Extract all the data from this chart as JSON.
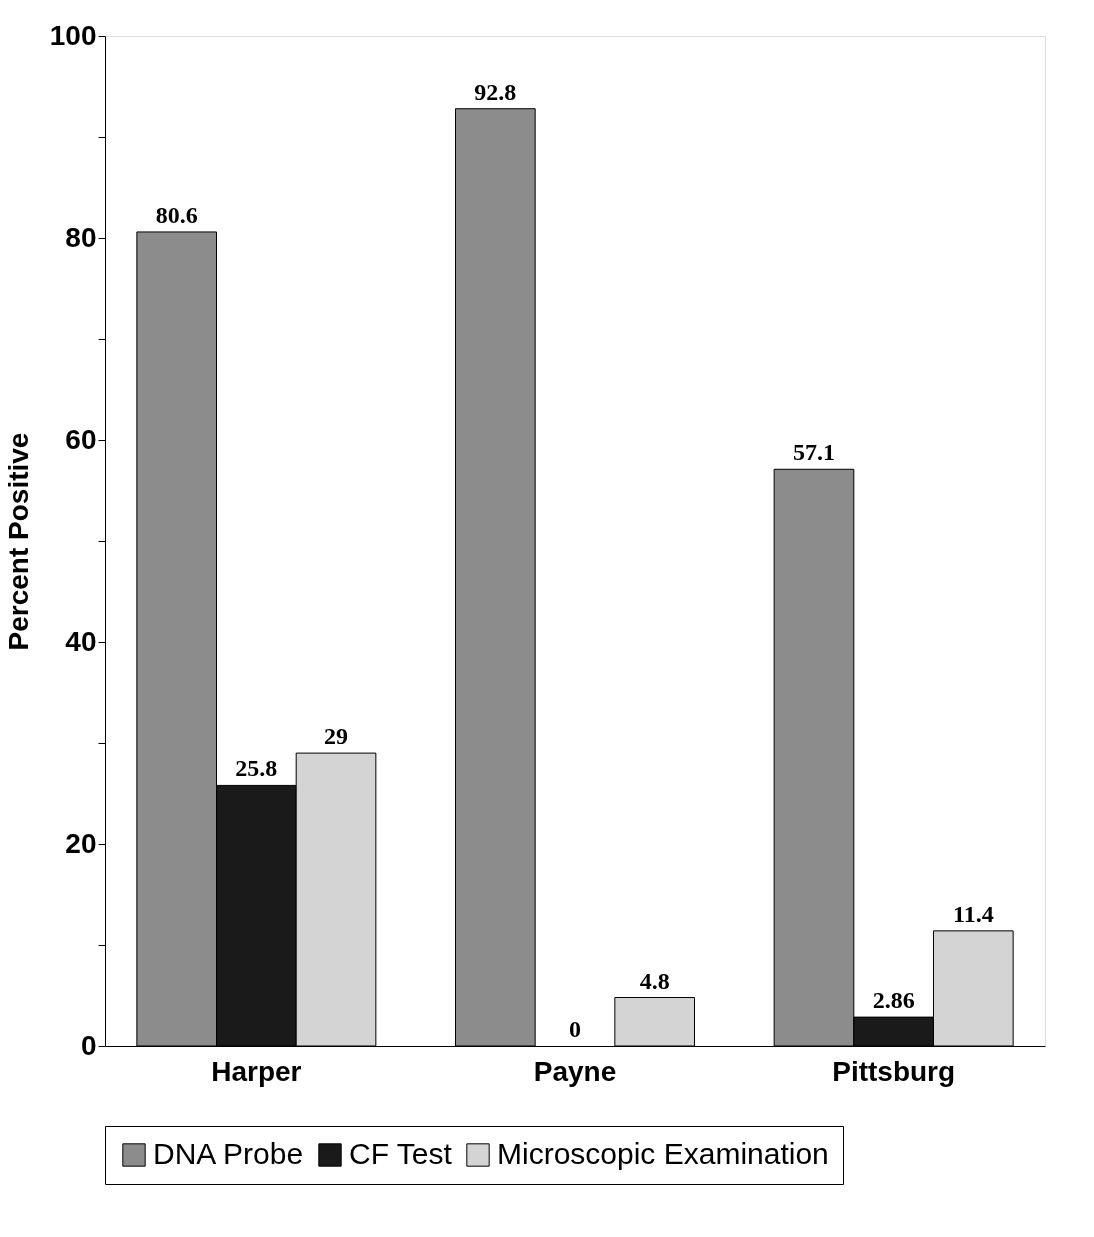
{
  "chart_data": {
    "type": "bar",
    "ylabel": "Percent Positive",
    "categories": [
      "Harper",
      "Payne",
      "Pittsburg"
    ],
    "series": [
      {
        "name": "DNA Probe",
        "color": "#8c8c8c",
        "values": [
          80.6,
          92.8,
          57.1
        ]
      },
      {
        "name": "CF Test",
        "color": "#1a1a1a",
        "values": [
          25.8,
          0,
          2.86
        ]
      },
      {
        "name": "Microscopic Examination",
        "color": "#d4d4d4",
        "values": [
          29,
          4.8,
          11.4
        ]
      }
    ],
    "ylim": [
      0,
      100
    ],
    "yticks": [
      0,
      {
        "value": 10,
        "label": null
      },
      20,
      {
        "value": 30,
        "label": null
      },
      40,
      {
        "value": 50,
        "label": null
      },
      60,
      {
        "value": 70,
        "label": null
      },
      80,
      {
        "value": 90,
        "label": null
      },
      100
    ],
    "data_labels": true,
    "grid": false,
    "legend": "bottom"
  }
}
